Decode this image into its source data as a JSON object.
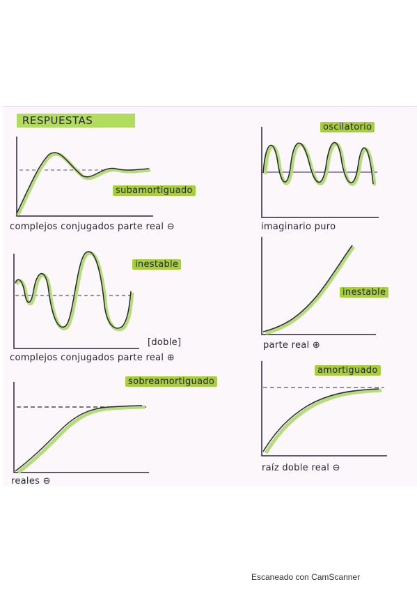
{
  "title": "RESPUESTAS",
  "panels": {
    "subamortiguado": {
      "tag": "subamortiguado",
      "caption": "complejos conjugados parte real ⊖"
    },
    "oscilatorio": {
      "tag": "oscilatorio",
      "caption": "imaginario puro"
    },
    "inestable_doble": {
      "tag": "inestable",
      "note": "[doble]",
      "caption": "complejos conjugados parte real ⊕"
    },
    "inestable_real": {
      "tag": "inestable",
      "caption": "parte real ⊕"
    },
    "sobreamortiguado": {
      "tag": "sobreamortiguado",
      "caption": "reales ⊖"
    },
    "amortiguado": {
      "tag": "amortiguado",
      "caption": "raíz doble real ⊖"
    }
  },
  "footer": "Escaneado con CamScanner",
  "colors": {
    "highlight": "#a6cf3a",
    "curve_shadow": "#b5dc7a",
    "ink": "#2a2535",
    "setpoint": "#5a4a8a"
  }
}
